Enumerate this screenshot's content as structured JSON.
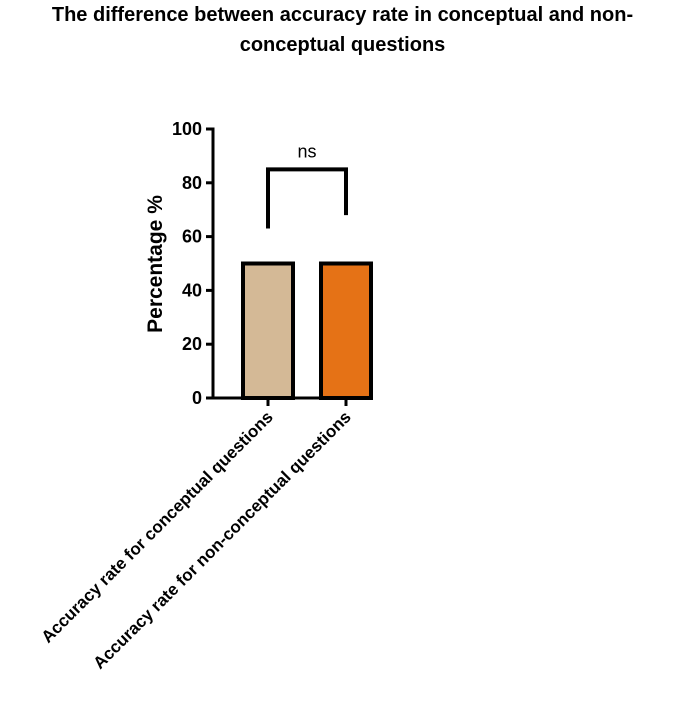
{
  "chart_data": {
    "type": "bar",
    "title_lines": [
      "The difference between accuracy rate in conceptual and non-",
      "conceptual questions"
    ],
    "ylabel": "Percentage %",
    "xlabel": "",
    "ylim": [
      0,
      100
    ],
    "yticks": [
      0,
      20,
      40,
      60,
      80,
      100
    ],
    "categories": [
      "Accuracy rate for conceptual questions",
      "Accuracy rate for non-conceptual questions"
    ],
    "values": [
      50,
      50
    ],
    "colors": [
      "#d4b996",
      "#e57216"
    ],
    "significance": {
      "between": [
        0,
        1
      ],
      "label": "ns",
      "y": 85,
      "left_end": 63,
      "right_end": 68
    },
    "grid": false
  }
}
